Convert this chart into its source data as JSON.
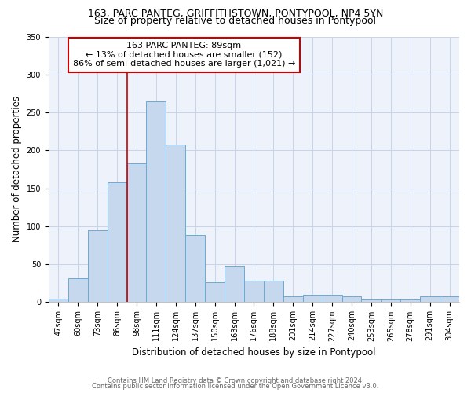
{
  "title": "163, PARC PANTEG, GRIFFITHSTOWN, PONTYPOOL, NP4 5YN",
  "subtitle": "Size of property relative to detached houses in Pontypool",
  "xlabel": "Distribution of detached houses by size in Pontypool",
  "ylabel": "Number of detached properties",
  "categories": [
    "47sqm",
    "60sqm",
    "73sqm",
    "86sqm",
    "98sqm",
    "111sqm",
    "124sqm",
    "137sqm",
    "150sqm",
    "163sqm",
    "176sqm",
    "188sqm",
    "201sqm",
    "214sqm",
    "227sqm",
    "240sqm",
    "253sqm",
    "265sqm",
    "278sqm",
    "291sqm",
    "304sqm"
  ],
  "values": [
    5,
    32,
    95,
    158,
    183,
    265,
    208,
    88,
    26,
    47,
    28,
    28,
    8,
    10,
    10,
    8,
    4,
    4,
    4,
    8,
    8
  ],
  "bar_color": "#c5d8ee",
  "bar_edge_color": "#6aaad4",
  "annotation_label": "163 PARC PANTEG: 89sqm",
  "annotation_line1": "← 13% of detached houses are smaller (152)",
  "annotation_line2": "86% of semi-detached houses are larger (1,021) →",
  "annotation_box_facecolor": "#ffffff",
  "annotation_box_edgecolor": "#cc0000",
  "vline_color": "#cc0000",
  "vline_x_index": 3.5,
  "ylim": [
    0,
    350
  ],
  "yticks": [
    0,
    50,
    100,
    150,
    200,
    250,
    300,
    350
  ],
  "footer1": "Contains HM Land Registry data © Crown copyright and database right 2024.",
  "footer2": "Contains public sector information licensed under the Open Government Licence v3.0.",
  "bg_color": "#ffffff",
  "plot_bg_color": "#edf2fb",
  "grid_color": "#c8d4e8",
  "title_fontsize": 9,
  "subtitle_fontsize": 9,
  "axis_label_fontsize": 8.5,
  "tick_fontsize": 7,
  "footer_fontsize": 6,
  "annotation_fontsize": 8
}
